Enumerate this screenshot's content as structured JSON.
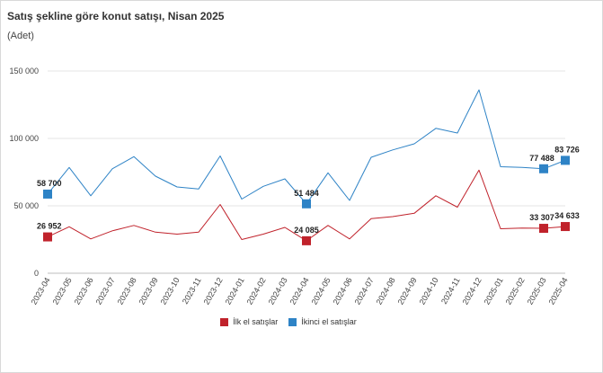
{
  "chart_data": {
    "type": "line",
    "title": "Satış şekline göre konut satışı, Nisan 2025",
    "subtitle": "(Adet)",
    "xlabel": "",
    "ylabel": "",
    "ylim": [
      0,
      150000
    ],
    "yticks": [
      0,
      50000,
      100000,
      150000
    ],
    "ytick_labels": [
      "0",
      "50 000",
      "100 000",
      "150 000"
    ],
    "grid": true,
    "legend_position": "bottom",
    "categories": [
      "2023-04",
      "2023-05",
      "2023-06",
      "2023-07",
      "2023-08",
      "2023-09",
      "2023-10",
      "2023-11",
      "2023-12",
      "2024-01",
      "2024-02",
      "2024-03",
      "2024-04",
      "2024-05",
      "2024-06",
      "2024-07",
      "2024-08",
      "2024-09",
      "2024-10",
      "2024-11",
      "2024-12",
      "2025-01",
      "2025-02",
      "2025-03",
      "2025-04"
    ],
    "series": [
      {
        "name": "İlk el satışlar",
        "color": "#c0222b",
        "values": [
          26952,
          34500,
          25500,
          31500,
          35500,
          30500,
          29000,
          30500,
          51000,
          25000,
          29000,
          34000,
          24085,
          35500,
          25500,
          40500,
          42000,
          44500,
          57500,
          49000,
          76500,
          33000,
          33500,
          33307,
          34633
        ],
        "labels": [
          {
            "index": 0,
            "text": "26 952"
          },
          {
            "index": 12,
            "text": "24 085"
          },
          {
            "index": 23,
            "text": "33 307"
          },
          {
            "index": 24,
            "text": "34 633"
          }
        ]
      },
      {
        "name": "İkinci el satışlar",
        "color": "#2e83c6",
        "values": [
          58700,
          78500,
          57500,
          77500,
          86500,
          72000,
          64000,
          62500,
          87000,
          55000,
          64500,
          70000,
          51484,
          74500,
          54000,
          86000,
          91500,
          96000,
          107500,
          104000,
          136000,
          79000,
          78500,
          77488,
          83726
        ],
        "labels": [
          {
            "index": 0,
            "text": "58 700"
          },
          {
            "index": 12,
            "text": "51 484"
          },
          {
            "index": 23,
            "text": "77 488"
          },
          {
            "index": 24,
            "text": "83 726"
          }
        ]
      }
    ]
  }
}
